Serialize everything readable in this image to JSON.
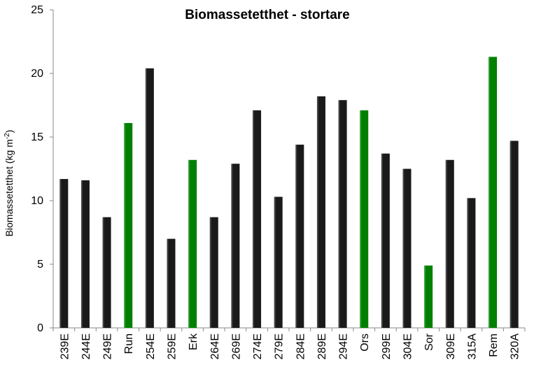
{
  "chart_data": {
    "type": "bar",
    "title": "Biomassetetthet - stortare",
    "ylabel": "Biomassetetthet  (kg m",
    "ylabel_sup": "-2",
    "ylabel_suffix": ")",
    "xlabel": "",
    "ylim": [
      0,
      25
    ],
    "yticks": [
      0,
      5,
      10,
      15,
      20,
      25
    ],
    "grid": false,
    "legend": "none",
    "categories": [
      "239E",
      "244E",
      "249E",
      "Run",
      "254E",
      "259E",
      "Erk",
      "264E",
      "269E",
      "274E",
      "279E",
      "284E",
      "289E",
      "294E",
      "Ors",
      "299E",
      "304E",
      "Sor",
      "309E",
      "315A",
      "Rem",
      "320A"
    ],
    "values": [
      11.7,
      11.6,
      8.7,
      16.1,
      20.4,
      7.0,
      13.2,
      8.7,
      12.9,
      17.1,
      10.3,
      14.4,
      18.2,
      17.9,
      17.1,
      13.7,
      12.5,
      4.9,
      13.2,
      10.2,
      21.3,
      14.7
    ],
    "bar_colors": [
      "#1a1a1a",
      "#1a1a1a",
      "#1a1a1a",
      "#008000",
      "#1a1a1a",
      "#1a1a1a",
      "#008000",
      "#1a1a1a",
      "#1a1a1a",
      "#1a1a1a",
      "#1a1a1a",
      "#1a1a1a",
      "#1a1a1a",
      "#1a1a1a",
      "#008000",
      "#1a1a1a",
      "#1a1a1a",
      "#008000",
      "#1a1a1a",
      "#1a1a1a",
      "#008000",
      "#1a1a1a"
    ]
  }
}
